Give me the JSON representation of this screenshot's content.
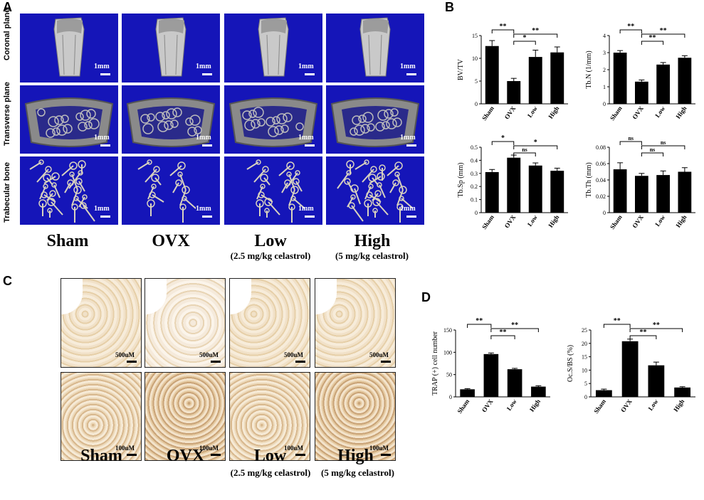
{
  "panels": {
    "a": "A",
    "b": "B",
    "c": "C",
    "d": "D"
  },
  "row_labels": [
    "Coronal plane",
    "Transverse plane",
    "Trabecular bone"
  ],
  "groups": [
    {
      "name": "Sham",
      "sub": ""
    },
    {
      "name": "OVX",
      "sub": ""
    },
    {
      "name": "Low",
      "sub": "(2.5 mg/kg celastrol)"
    },
    {
      "name": "High",
      "sub": "(5 mg/kg celastrol)"
    }
  ],
  "scale_ct": "1mm",
  "scale_histo_top": "500uM",
  "scale_histo_bottom": "100uM",
  "colors": {
    "ct_background": "#1515b8",
    "bar": "#000000"
  },
  "chart_data": [
    {
      "type": "bar",
      "panel": "B",
      "ylabel": "BV/TV",
      "categories": [
        "Sham",
        "OVX",
        "Low",
        "High"
      ],
      "values": [
        12.7,
        5.0,
        10.3,
        11.3
      ],
      "errors": [
        1.2,
        0.6,
        1.5,
        1.2
      ],
      "ylim": [
        0,
        15
      ],
      "yticks": [
        0,
        5,
        10,
        15
      ],
      "annotations": [
        {
          "from": 0,
          "to": 1,
          "label": "**"
        },
        {
          "from": 1,
          "to": 2,
          "label": "*"
        },
        {
          "from": 1,
          "to": 3,
          "label": "**"
        }
      ]
    },
    {
      "type": "bar",
      "panel": "B",
      "ylabel": "Tb.N (1/mm)",
      "categories": [
        "Sham",
        "OVX",
        "Low",
        "High"
      ],
      "values": [
        3.0,
        1.3,
        2.3,
        2.7
      ],
      "errors": [
        0.12,
        0.1,
        0.12,
        0.12
      ],
      "ylim": [
        0,
        4
      ],
      "yticks": [
        0,
        1,
        2,
        3,
        4
      ],
      "annotations": [
        {
          "from": 0,
          "to": 1,
          "label": "**"
        },
        {
          "from": 1,
          "to": 2,
          "label": "**"
        },
        {
          "from": 1,
          "to": 3,
          "label": "**"
        }
      ]
    },
    {
      "type": "bar",
      "panel": "B",
      "ylabel": "Tb.Sp (mm)",
      "categories": [
        "Sham",
        "OVX",
        "Low",
        "High"
      ],
      "values": [
        0.31,
        0.42,
        0.36,
        0.32
      ],
      "errors": [
        0.02,
        0.02,
        0.02,
        0.02
      ],
      "ylim": [
        0,
        0.5
      ],
      "yticks": [
        0,
        0.1,
        0.2,
        0.3,
        0.4,
        0.5
      ],
      "annotations": [
        {
          "from": 0,
          "to": 1,
          "label": "*"
        },
        {
          "from": 1,
          "to": 2,
          "label": "ns"
        },
        {
          "from": 1,
          "to": 3,
          "label": "*"
        }
      ]
    },
    {
      "type": "bar",
      "panel": "B",
      "ylabel": "Tb.Th (mm)",
      "categories": [
        "Sham",
        "OVX",
        "Low",
        "High"
      ],
      "values": [
        0.053,
        0.045,
        0.046,
        0.05
      ],
      "errors": [
        0.008,
        0.003,
        0.005,
        0.005
      ],
      "ylim": [
        0,
        0.08
      ],
      "yticks": [
        0,
        0.02,
        0.04,
        0.06,
        0.08
      ],
      "annotations": [
        {
          "from": 0,
          "to": 1,
          "label": "ns"
        },
        {
          "from": 1,
          "to": 2,
          "label": "ns"
        },
        {
          "from": 1,
          "to": 3,
          "label": "ns"
        }
      ]
    },
    {
      "type": "bar",
      "panel": "D",
      "ylabel": "TRAP (+) cell number",
      "categories": [
        "Sham",
        "OVX",
        "Low",
        "High"
      ],
      "values": [
        17,
        96,
        62,
        23
      ],
      "errors": [
        1.5,
        2.5,
        2,
        2
      ],
      "ylim": [
        0,
        150
      ],
      "yticks": [
        0,
        50,
        100,
        150
      ],
      "annotations": [
        {
          "from": 0,
          "to": 1,
          "label": "**"
        },
        {
          "from": 1,
          "to": 2,
          "label": "**"
        },
        {
          "from": 1,
          "to": 3,
          "label": "**"
        }
      ]
    },
    {
      "type": "bar",
      "panel": "D",
      "ylabel": "Oc.S/BS (%)",
      "categories": [
        "Sham",
        "OVX",
        "Low",
        "High"
      ],
      "values": [
        2.5,
        20.8,
        11.8,
        3.5
      ],
      "errors": [
        0.4,
        0.8,
        1.2,
        0.3
      ],
      "ylim": [
        0,
        25
      ],
      "yticks": [
        0,
        5,
        10,
        15,
        20,
        25
      ],
      "annotations": [
        {
          "from": 0,
          "to": 1,
          "label": "**"
        },
        {
          "from": 1,
          "to": 2,
          "label": "**"
        },
        {
          "from": 1,
          "to": 3,
          "label": "**"
        }
      ]
    }
  ]
}
